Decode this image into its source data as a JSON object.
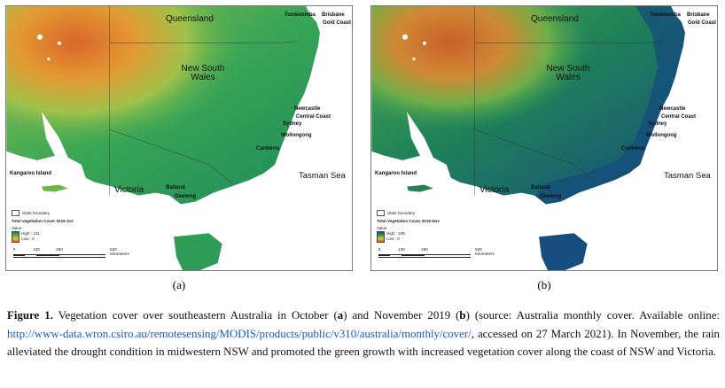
{
  "panels": [
    {
      "id": "a",
      "sublabel": "(a)",
      "legend": {
        "boundary_label": "State boundary",
        "title": "Total vegetation Cover 2019 Oct",
        "value_label": "Value",
        "high_label": "High : 101",
        "low_label": "Low : 0"
      },
      "colors": {
        "land": "#2e9e4e",
        "dry": "#e08a2a",
        "lush": "#1f7a54",
        "sea": "#ffffff"
      }
    },
    {
      "id": "b",
      "sublabel": "(b)",
      "legend": {
        "boundary_label": "State boundary",
        "title": "Total Vegetation Cover 2019 Nov",
        "value_label": "Value",
        "high_label": "High : 100",
        "low_label": "Low : 0"
      },
      "colors": {
        "land": "#1f7d58",
        "dry": "#c9672a",
        "lush": "#14507e",
        "sea": "#ffffff"
      }
    }
  ],
  "map_labels": {
    "queensland": "Queensland",
    "nsw": "New South Wales",
    "victoria": "Victoria",
    "tasman": "Tasman Sea",
    "kangaroo": "Kangaroo Island",
    "toowoomba": "Toowoomba",
    "brisbane": "Brisbane",
    "gold_coast": "Gold Coast",
    "newcastle": "Newcastle",
    "central_coast": "Central Coast",
    "sydney": "Sydney",
    "wollongong": "Wollongong",
    "canberra": "Canberra",
    "ballarat": "Ballarat",
    "geelong": "Geelong"
  },
  "scale_bar": {
    "ticks": [
      "0",
      "130",
      "260",
      "520 Kilometers"
    ]
  },
  "caption": {
    "label": "Figure 1.",
    "text_1": " Vegetation cover over southeastern Australia in October (",
    "a_bold": "a",
    "text_2": ") and November 2019 (",
    "b_bold": "b",
    "text_3": ") (source: Australia monthly cover. Available online: ",
    "link": "http://www-data.wron.csiro.au/remotesensing/MODIS/products/public/v310/australia/monthly/cover/",
    "text_4": ", accessed on 27 March 2021). In November, the rain alleviated the drought condition in midwestern NSW and promoted the green growth with increased vegetation cover along the coast of NSW and Victoria."
  }
}
